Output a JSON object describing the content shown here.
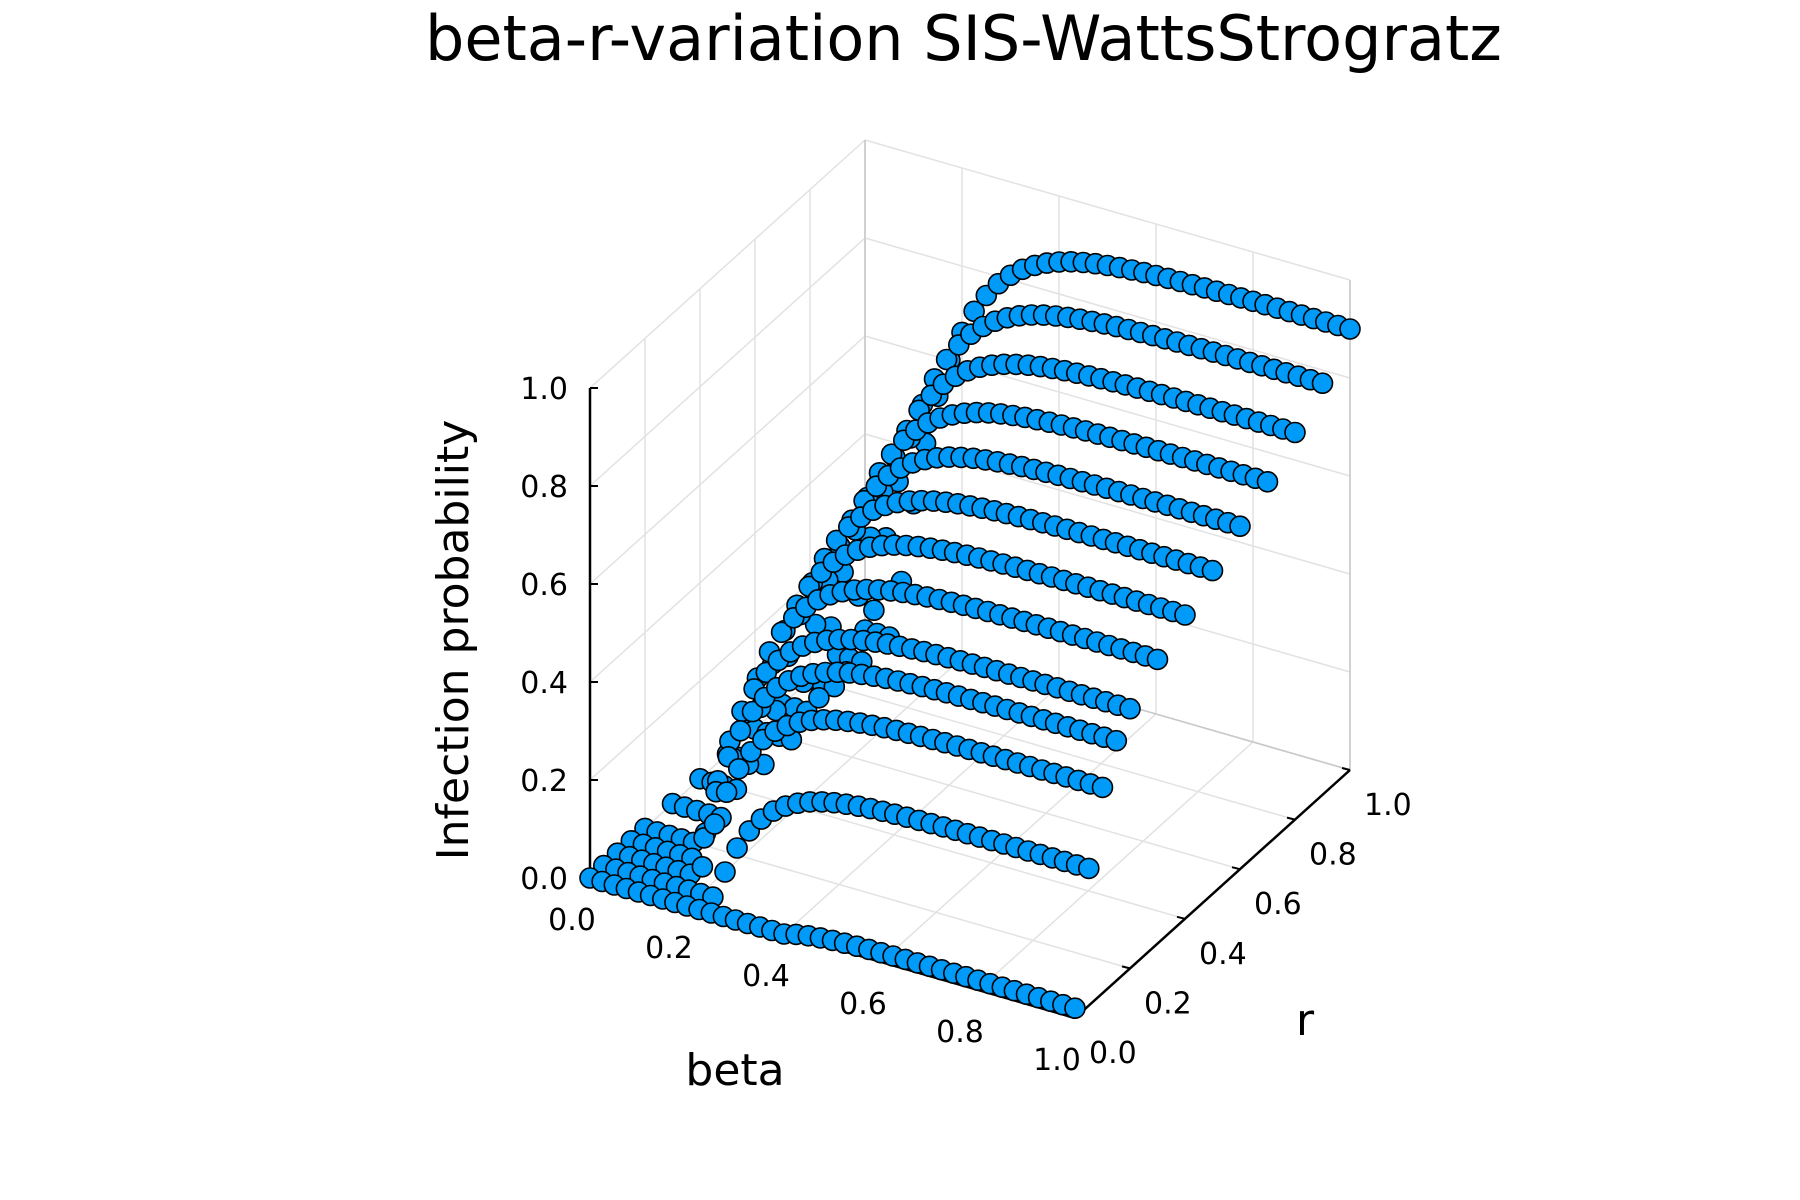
{
  "chart_data": {
    "type": "scatter",
    "projection": "3d",
    "title": "beta-r-variation SIS-WattsStrogratz",
    "xlabel": "beta",
    "ylabel": "r",
    "zlabel": "Infection probability",
    "xlim": [
      0.0,
      1.0
    ],
    "ylim": [
      0.0,
      1.0
    ],
    "zlim": [
      0.0,
      1.0
    ],
    "xticks": [
      "0.0",
      "0.2",
      "0.4",
      "0.6",
      "0.8",
      "1.0"
    ],
    "yticks": [
      "0.0",
      "0.2",
      "0.4",
      "0.6",
      "0.8",
      "1.0"
    ],
    "zticks": [
      "0.0",
      "0.2",
      "0.4",
      "0.6",
      "0.8",
      "1.0"
    ],
    "grid": true,
    "legend": "none",
    "marker": {
      "shape": "circle",
      "color": "#009AF9",
      "edge_color": "#000000"
    },
    "series": [
      {
        "r": 0.0,
        "beta_min": 0.0,
        "beta_max": 1.0,
        "threshold": 0.4,
        "z_at_beta_1": 0.02
      },
      {
        "r": 0.05,
        "beta_min": 0.0,
        "beta_max": 1.0,
        "threshold": 0.23,
        "z_at_beta_1": 0.28
      },
      {
        "r": 0.1,
        "beta_min": 0.0,
        "beta_max": 1.0,
        "threshold": 0.17,
        "z_at_beta_1": 0.42
      },
      {
        "r": 0.15,
        "beta_min": 0.0,
        "beta_max": 1.0,
        "threshold": 0.14,
        "z_at_beta_1": 0.49
      },
      {
        "r": 0.2,
        "beta_min": 0.0,
        "beta_max": 1.0,
        "threshold": 0.12,
        "z_at_beta_1": 0.53
      },
      {
        "r": 0.3,
        "beta_min": 0.0,
        "beta_max": 1.0,
        "threshold": 0.1,
        "z_at_beta_1": 0.58
      },
      {
        "r": 0.4,
        "beta_min": 0.0,
        "beta_max": 1.0,
        "threshold": 0.09,
        "z_at_beta_1": 0.62
      },
      {
        "r": 0.5,
        "beta_min": 0.0,
        "beta_max": 1.0,
        "threshold": 0.08,
        "z_at_beta_1": 0.66
      },
      {
        "r": 0.6,
        "beta_min": 0.0,
        "beta_max": 1.0,
        "threshold": 0.08,
        "z_at_beta_1": 0.7
      },
      {
        "r": 0.7,
        "beta_min": 0.0,
        "beta_max": 1.0,
        "threshold": 0.07,
        "z_at_beta_1": 0.74
      },
      {
        "r": 0.8,
        "beta_min": 0.0,
        "beta_max": 1.0,
        "threshold": 0.07,
        "z_at_beta_1": 0.79
      },
      {
        "r": 0.9,
        "beta_min": 0.0,
        "beta_max": 1.0,
        "threshold": 0.06,
        "z_at_beta_1": 0.84
      },
      {
        "r": 1.0,
        "beta_min": 0.0,
        "beta_max": 1.0,
        "threshold": 0.06,
        "z_at_beta_1": 0.9
      }
    ]
  }
}
